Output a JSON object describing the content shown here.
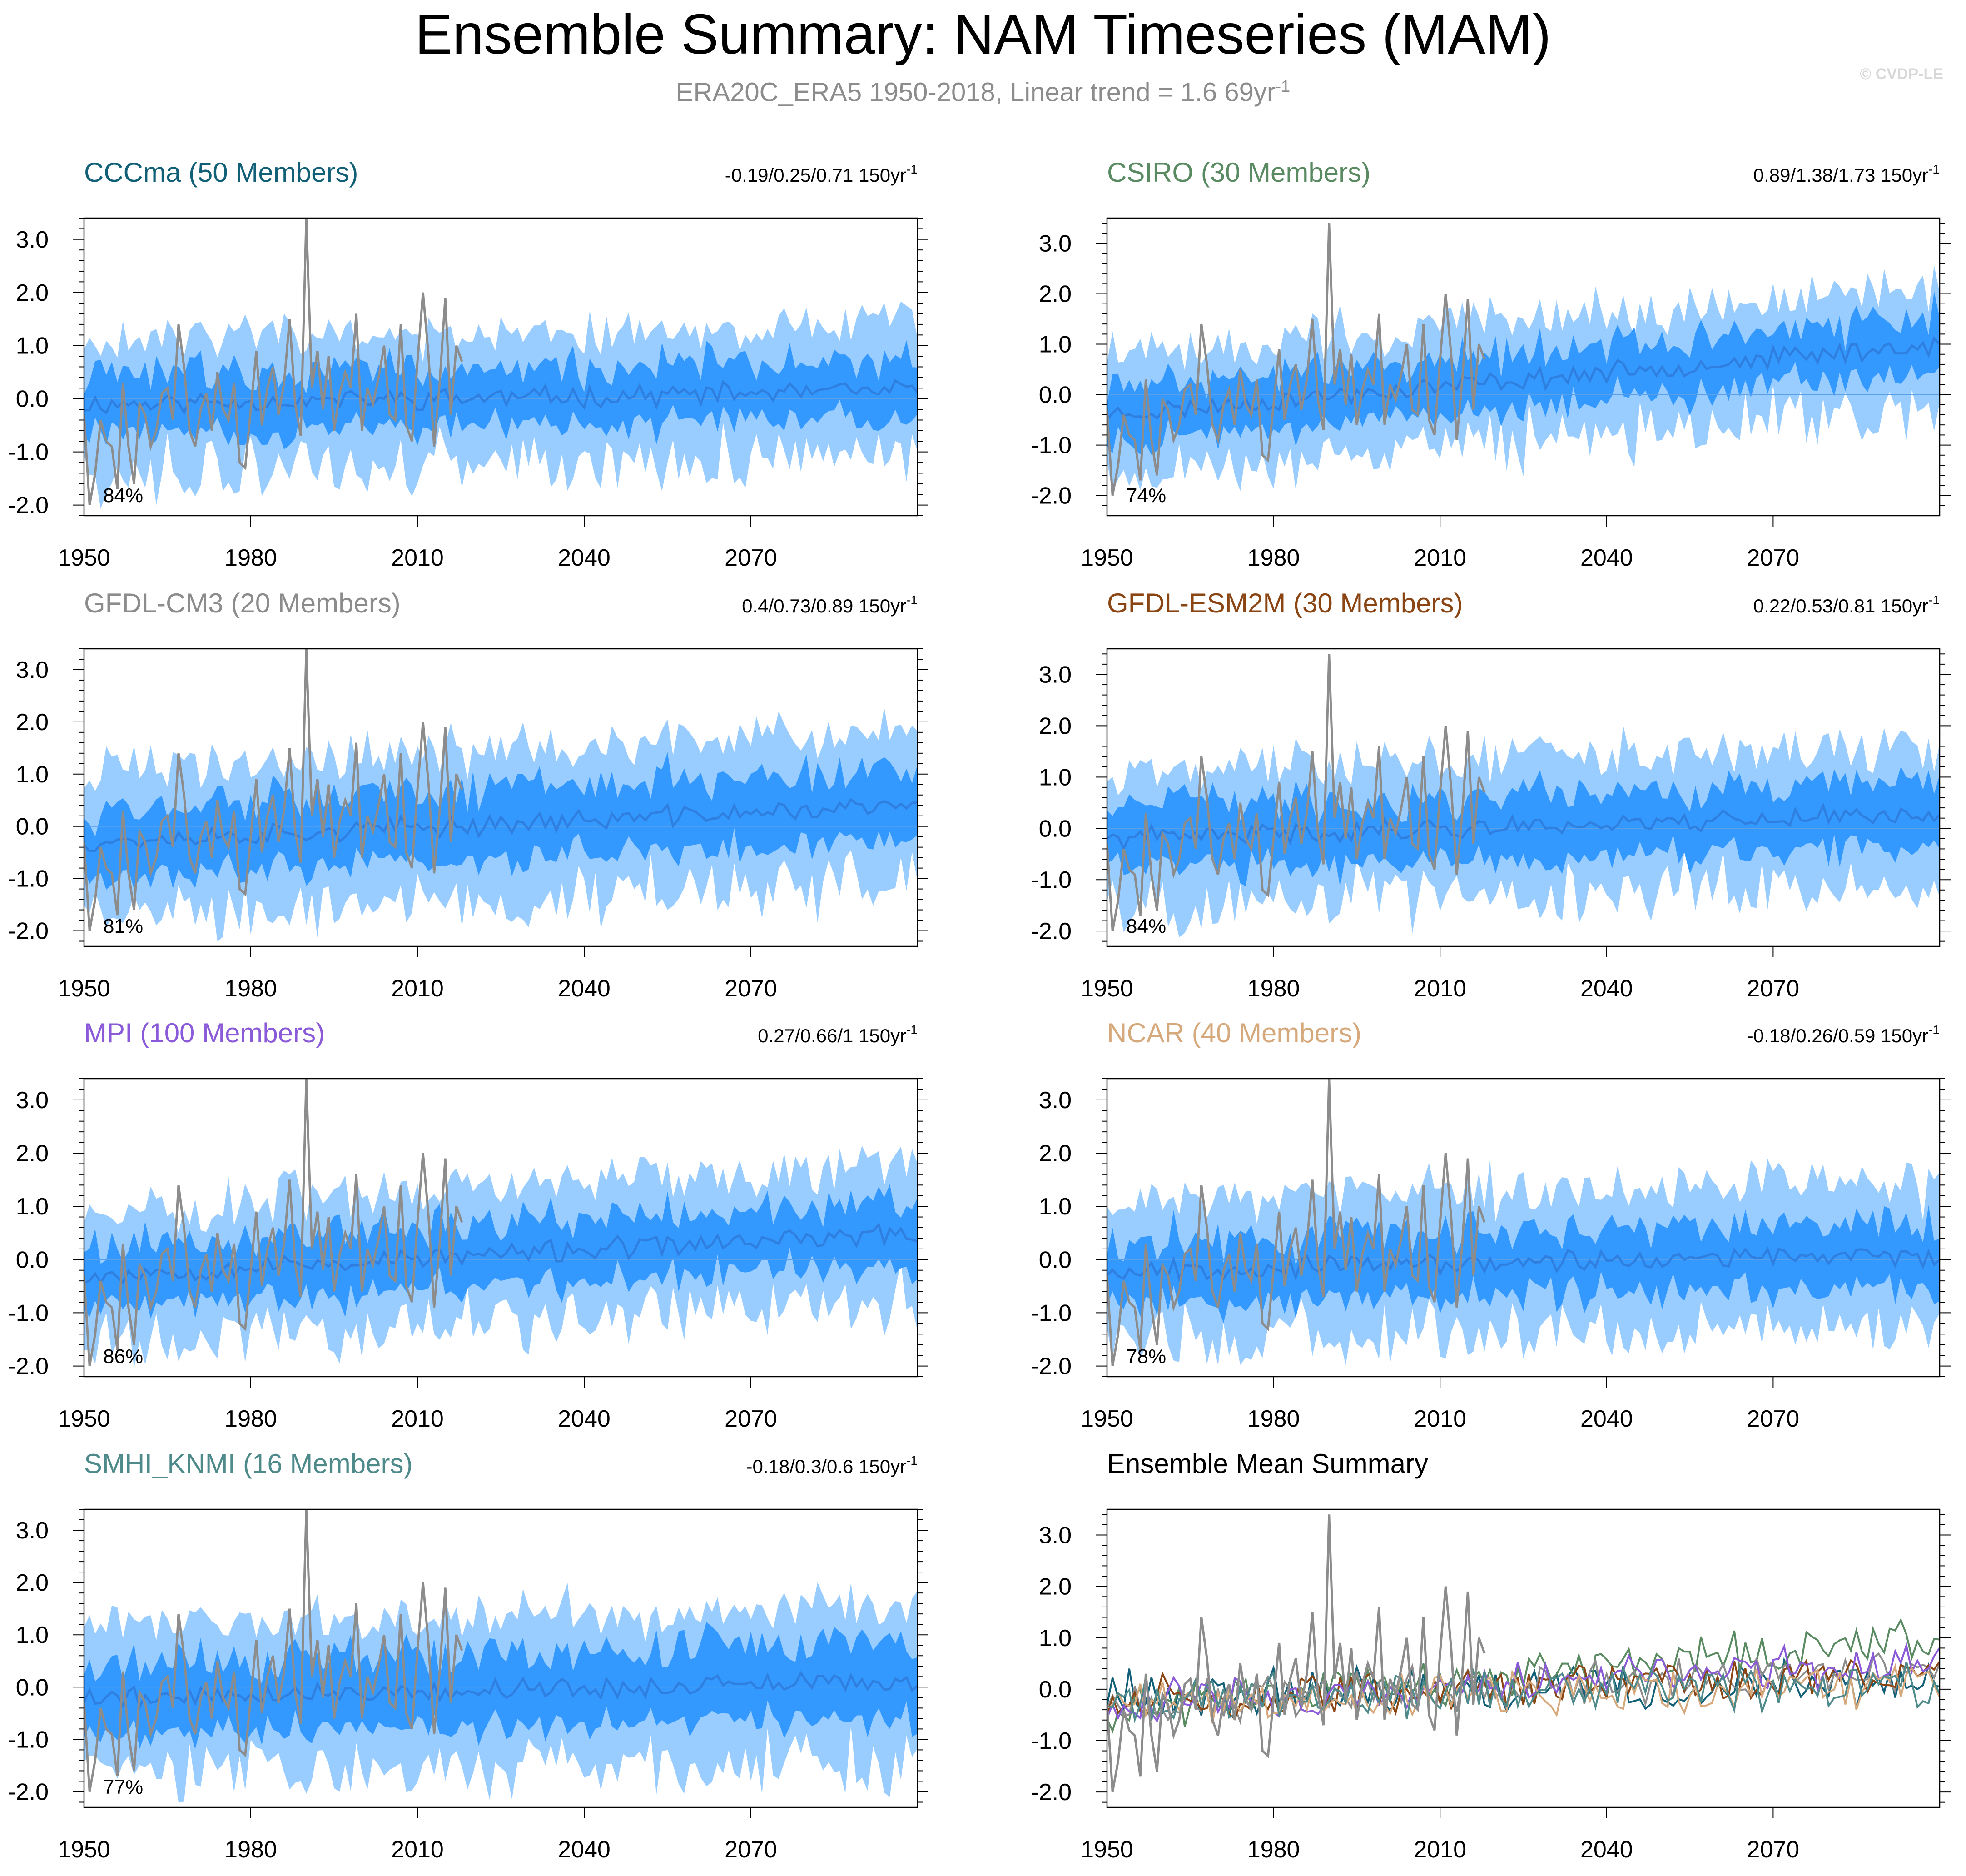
{
  "title": "Ensemble Summary: NAM Timeseries (MAM)",
  "subtitle": {
    "text": "ERA20C_ERA5 1950-2018, Linear trend = 1.6 69yr",
    "superscript": "-1"
  },
  "copyright": "© CVDP-LE",
  "colors": {
    "outer_band": "#99ccff",
    "inner_band": "#3399ff",
    "ensemble_mean": "#2f7fe0",
    "observation": "#8c8c8c",
    "axis": "#000000"
  },
  "chart_data": [
    {
      "type": "area",
      "panel": "CCCma",
      "title": "CCCma (50 Members)",
      "title_color": "#125f78",
      "trend_label": "-0.19/0.25/0.71 150yr",
      "trend_superscript": "-1",
      "percent_label": "84%",
      "mean_start": -0.1,
      "mean_end": 0.15,
      "inner_half": 0.55,
      "outer_half": 1.25,
      "seed": 11,
      "ylim": [
        -2.2,
        3.4
      ],
      "yticks": [
        3.0,
        2.0,
        1.0,
        0.0,
        -1.0,
        -2.0
      ],
      "ytick_labels": [
        "3.0",
        "2.0",
        "1.0",
        "0.0",
        "-1.0",
        "-2.0"
      ],
      "xlim": [
        1950,
        2100
      ],
      "xticks": [
        1950,
        1980,
        2010,
        2040,
        2070
      ],
      "xtick_labels": [
        "1950",
        "1980",
        "2010",
        "2040",
        "2070"
      ]
    },
    {
      "type": "area",
      "panel": "CSIRO",
      "title": "CSIRO (30 Members)",
      "title_color": "#5a8a62",
      "trend_label": "0.89/1.38/1.73 150yr",
      "trend_superscript": "-1",
      "percent_label": "74%",
      "mean_start": -0.4,
      "mean_end": 1.0,
      "inner_half": 0.55,
      "outer_half": 1.2,
      "seed": 23,
      "ylim": [
        -2.4,
        3.5
      ],
      "yticks": [
        3.0,
        2.0,
        1.0,
        0.0,
        -1.0,
        -2.0
      ],
      "ytick_labels": [
        "3.0",
        "2.0",
        "1.0",
        "0.0",
        "-1.0",
        "-2.0"
      ],
      "xlim": [
        1950,
        2100
      ],
      "xticks": [
        1950,
        1980,
        2010,
        2040,
        2070
      ],
      "xtick_labels": [
        "1950",
        "1980",
        "2010",
        "2040",
        "2070"
      ]
    },
    {
      "type": "area",
      "panel": "GFDL-CM3",
      "title": "GFDL-CM3 (20 Members)",
      "title_color": "#8c8c8c",
      "trend_label": "0.4/0.73/0.89 150yr",
      "trend_superscript": "-1",
      "percent_label": "81%",
      "mean_start": -0.3,
      "mean_end": 0.4,
      "inner_half": 0.65,
      "outer_half": 1.4,
      "seed": 37,
      "ylim": [
        -2.3,
        3.4
      ],
      "yticks": [
        3.0,
        2.0,
        1.0,
        0.0,
        -1.0,
        -2.0
      ],
      "ytick_labels": [
        "3.0",
        "2.0",
        "1.0",
        "0.0",
        "-1.0",
        "-2.0"
      ],
      "xlim": [
        1950,
        2100
      ],
      "xticks": [
        1950,
        1980,
        2010,
        2040,
        2070
      ],
      "xtick_labels": [
        "1950",
        "1980",
        "2010",
        "2040",
        "2070"
      ]
    },
    {
      "type": "area",
      "panel": "GFDL-ESM2M",
      "title": "GFDL-ESM2M (30 Members)",
      "title_color": "#8b4513",
      "trend_label": "0.22/0.53/0.81 150yr",
      "trend_superscript": "-1",
      "percent_label": "84%",
      "mean_start": -0.2,
      "mean_end": 0.3,
      "inner_half": 0.6,
      "outer_half": 1.3,
      "seed": 41,
      "ylim": [
        -2.3,
        3.5
      ],
      "yticks": [
        3.0,
        2.0,
        1.0,
        0.0,
        -1.0,
        -2.0
      ],
      "ytick_labels": [
        "3.0",
        "2.0",
        "1.0",
        "0.0",
        "-1.0",
        "-2.0"
      ],
      "xlim": [
        1950,
        2100
      ],
      "xticks": [
        1950,
        1980,
        2010,
        2040,
        2070
      ],
      "xtick_labels": [
        "1950",
        "1980",
        "2010",
        "2040",
        "2070"
      ]
    },
    {
      "type": "area",
      "panel": "MPI",
      "title": "MPI (100 Members)",
      "title_color": "#8a5ad8",
      "trend_label": "0.27/0.66/1 150yr",
      "trend_superscript": "-1",
      "percent_label": "86%",
      "mean_start": -0.3,
      "mean_end": 0.5,
      "inner_half": 0.6,
      "outer_half": 1.3,
      "seed": 53,
      "ylim": [
        -2.2,
        3.4
      ],
      "yticks": [
        3.0,
        2.0,
        1.0,
        0.0,
        -1.0,
        -2.0
      ],
      "ytick_labels": [
        "3.0",
        "2.0",
        "1.0",
        "0.0",
        "-1.0",
        "-2.0"
      ],
      "xlim": [
        1950,
        2100
      ],
      "xticks": [
        1950,
        1980,
        2010,
        2040,
        2070
      ],
      "xtick_labels": [
        "1950",
        "1980",
        "2010",
        "2040",
        "2070"
      ]
    },
    {
      "type": "area",
      "panel": "NCAR",
      "title": "NCAR (40 Members)",
      "title_color": "#d6a97c",
      "trend_label": "-0.18/0.26/0.59 150yr",
      "trend_superscript": "-1",
      "percent_label": "78%",
      "mean_start": -0.2,
      "mean_end": 0.1,
      "inner_half": 0.6,
      "outer_half": 1.35,
      "seed": 67,
      "ylim": [
        -2.2,
        3.4
      ],
      "yticks": [
        3.0,
        2.0,
        1.0,
        0.0,
        -1.0,
        -2.0
      ],
      "ytick_labels": [
        "3.0",
        "2.0",
        "1.0",
        "0.0",
        "-1.0",
        "-2.0"
      ],
      "xlim": [
        1950,
        2100
      ],
      "xticks": [
        1950,
        1980,
        2010,
        2040,
        2070
      ],
      "xtick_labels": [
        "1950",
        "1980",
        "2010",
        "2040",
        "2070"
      ]
    },
    {
      "type": "area",
      "panel": "SMHI_KNMI",
      "title": "SMHI_KNMI (16 Members)",
      "title_color": "#4f8a8b",
      "trend_label": "-0.18/0.3/0.6 150yr",
      "trend_superscript": "-1",
      "percent_label": "77%",
      "mean_start": -0.2,
      "mean_end": 0.1,
      "inner_half": 0.7,
      "outer_half": 1.45,
      "seed": 79,
      "ylim": [
        -2.3,
        3.4
      ],
      "yticks": [
        3.0,
        2.0,
        1.0,
        0.0,
        -1.0,
        -2.0
      ],
      "ytick_labels": [
        "3.0",
        "2.0",
        "1.0",
        "0.0",
        "-1.0",
        "-2.0"
      ],
      "xlim": [
        1950,
        2100
      ],
      "xticks": [
        1950,
        1980,
        2010,
        2040,
        2070
      ],
      "xtick_labels": [
        "1950",
        "1980",
        "2010",
        "2040",
        "2070"
      ]
    },
    {
      "type": "line",
      "panel": "Ensemble Mean Summary",
      "title": "Ensemble Mean Summary",
      "title_color": "#000000",
      "trend_label": "",
      "trend_superscript": "",
      "percent_label": "",
      "ylim": [
        -2.3,
        3.5
      ],
      "yticks": [
        3.0,
        2.0,
        1.0,
        0.0,
        -1.0,
        -2.0
      ],
      "ytick_labels": [
        "3.0",
        "2.0",
        "1.0",
        "0.0",
        "-1.0",
        "-2.0"
      ],
      "xlim": [
        1950,
        2100
      ],
      "xticks": [
        1950,
        1980,
        2010,
        2040,
        2070
      ],
      "xtick_labels": [
        "1950",
        "1980",
        "2010",
        "2040",
        "2070"
      ],
      "series": [
        {
          "name": "CCCma",
          "color": "#125f78",
          "start": -0.1,
          "end": 0.15,
          "seed": 111
        },
        {
          "name": "CSIRO",
          "color": "#5a8a62",
          "start": -0.4,
          "end": 1.0,
          "seed": 123
        },
        {
          "name": "GFDL-CM3",
          "color": "#8c8c8c",
          "start": -0.3,
          "end": 0.4,
          "seed": 137
        },
        {
          "name": "GFDL-ESM2M",
          "color": "#8b4513",
          "start": -0.2,
          "end": 0.3,
          "seed": 141
        },
        {
          "name": "MPI",
          "color": "#8a5ad8",
          "start": -0.3,
          "end": 0.5,
          "seed": 153
        },
        {
          "name": "NCAR",
          "color": "#d6a97c",
          "start": -0.2,
          "end": 0.1,
          "seed": 167
        },
        {
          "name": "SMHI_KNMI",
          "color": "#4f8a8b",
          "start": -0.2,
          "end": 0.1,
          "seed": 179
        }
      ]
    }
  ],
  "observation": {
    "name": "ERA20C_ERA5",
    "years": [
      1950,
      1951,
      1952,
      1953,
      1954,
      1955,
      1956,
      1957,
      1958,
      1959,
      1960,
      1961,
      1962,
      1963,
      1964,
      1965,
      1966,
      1967,
      1968,
      1969,
      1970,
      1971,
      1972,
      1973,
      1974,
      1975,
      1976,
      1977,
      1978,
      1979,
      1980,
      1981,
      1982,
      1983,
      1984,
      1985,
      1986,
      1987,
      1988,
      1989,
      1990,
      1991,
      1992,
      1993,
      1994,
      1995,
      1996,
      1997,
      1998,
      1999,
      2000,
      2001,
      2002,
      2003,
      2004,
      2005,
      2006,
      2007,
      2008,
      2009,
      2010,
      2011,
      2012,
      2013,
      2014,
      2015,
      2016,
      2017,
      2018
    ],
    "values": [
      -0.3,
      -2.0,
      -1.4,
      -0.4,
      -0.8,
      -0.9,
      -1.7,
      0.3,
      -0.9,
      -1.6,
      -0.1,
      -0.3,
      -0.9,
      -0.6,
      0.1,
      0.2,
      -0.4,
      1.4,
      0.6,
      -0.6,
      -0.9,
      -0.2,
      0.1,
      -0.6,
      0.5,
      -0.2,
      -0.4,
      0.3,
      -1.2,
      -1.3,
      -0.2,
      0.9,
      -0.5,
      0.2,
      0.6,
      -0.3,
      0.3,
      1.5,
      -0.1,
      -0.7,
      3.4,
      0.2,
      0.9,
      -0.2,
      0.8,
      -0.6,
      0.1,
      0.5,
      0.2,
      1.6,
      -0.6,
      0.2,
      -0.1,
      0.4,
      1.0,
      -0.3,
      -0.4,
      1.4,
      -0.5,
      -0.8,
      0.7,
      2.0,
      0.8,
      -0.9,
      0.3,
      1.9,
      -0.3,
      1.0,
      0.7
    ]
  }
}
